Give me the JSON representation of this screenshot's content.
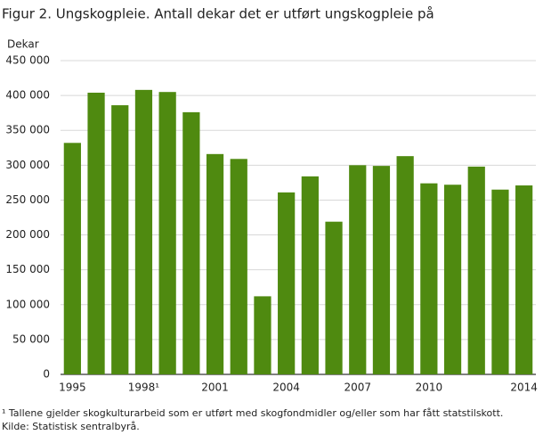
{
  "chart_data": {
    "type": "bar",
    "title": "Figur 2. Ungskogpleie. Antall dekar det er utført ungskogpleie på",
    "y_label": "Dekar",
    "categories": [
      "1995",
      null,
      null,
      "1998¹",
      null,
      null,
      "2001",
      null,
      null,
      "2004",
      null,
      null,
      "2007",
      null,
      null,
      "2010",
      null,
      null,
      null,
      "2014"
    ],
    "values": [
      332000,
      404000,
      386000,
      408000,
      405000,
      376000,
      316000,
      309000,
      112000,
      261000,
      284000,
      219000,
      300000,
      299000,
      313000,
      274000,
      272000,
      298000,
      265000,
      271000
    ],
    "color": "#4f8a10",
    "ylim": [
      0,
      450000
    ],
    "yticks": [
      0,
      {
        "value": 50000,
        "label": "50 000"
      },
      {
        "value": 100000,
        "label": "100 000"
      },
      {
        "value": 150000,
        "label": "150 000"
      },
      {
        "value": 200000,
        "label": "200 000"
      },
      {
        "value": 250000,
        "label": "250 000"
      },
      {
        "value": 300000,
        "label": "300 000"
      },
      {
        "value": 350000,
        "label": "350 000"
      },
      {
        "value": 400000,
        "label": "400 000"
      },
      {
        "value": 450000,
        "label": "450 000"
      }
    ],
    "grid": true,
    "footnotes": [
      "¹ Tallene gjelder skogkulturarbeid som er utført med skogfondmidler og/eller som har fått statstilskott.",
      "Kilde: Statistisk sentralbyrå."
    ]
  }
}
